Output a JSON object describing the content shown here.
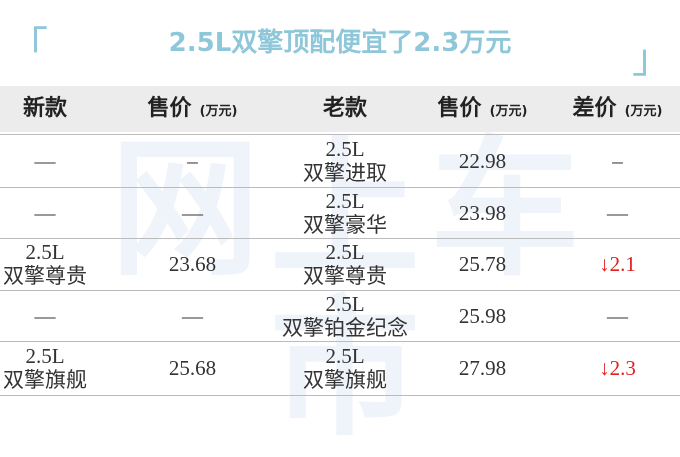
{
  "header": {
    "title": "2.5L双擎顶配便宜了2.3万元",
    "bracket_left": "「",
    "bracket_right": "」"
  },
  "watermark": "网上车市",
  "table": {
    "columns": [
      {
        "main": "新款"
      },
      {
        "main": "售价",
        "unit": "(万元)"
      },
      {
        "main": "老款"
      },
      {
        "main": "售价",
        "unit": "(万元)"
      },
      {
        "main": "差价",
        "unit": "(万元)"
      }
    ],
    "rows": [
      [
        [
          "—"
        ],
        [
          "–"
        ],
        [
          "2.5L",
          "双擎进取"
        ],
        [
          "22.98"
        ],
        [
          "–"
        ]
      ],
      [
        [
          "—"
        ],
        [
          "—"
        ],
        [
          "2.5L",
          "双擎豪华"
        ],
        [
          "23.98"
        ],
        [
          "—"
        ]
      ],
      [
        [
          "2.5L",
          "双擎尊贵"
        ],
        [
          "23.68"
        ],
        [
          "2.5L",
          "双擎尊贵"
        ],
        [
          "25.78"
        ],
        [
          "↓2.1"
        ]
      ],
      [
        [
          "—"
        ],
        [
          "—"
        ],
        [
          "2.5L",
          "双擎铂金纪念"
        ],
        [
          "25.98"
        ],
        [
          "—"
        ]
      ],
      [
        [
          "2.5L",
          "双擎旗舰"
        ],
        [
          "25.68"
        ],
        [
          "2.5L",
          "双擎旗舰"
        ],
        [
          "27.98"
        ],
        [
          "↓2.3"
        ]
      ]
    ]
  }
}
